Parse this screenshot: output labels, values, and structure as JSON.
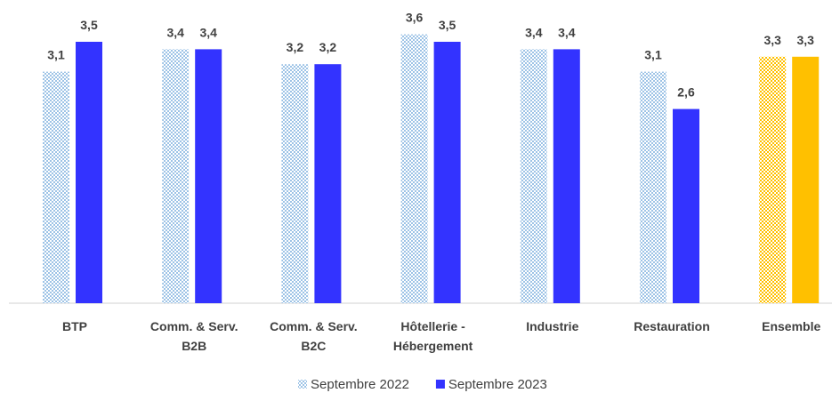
{
  "chart_data": {
    "type": "bar",
    "categories": [
      [
        "BTP"
      ],
      [
        "Comm. & Serv.",
        "B2B"
      ],
      [
        "Comm. & Serv.",
        "B2C"
      ],
      [
        "Hôtellerie -",
        "Hébergement"
      ],
      [
        "Industrie"
      ],
      [
        "Restauration"
      ],
      [
        "Ensemble"
      ]
    ],
    "series": [
      {
        "name": "Septembre 2022",
        "color": "#9dc3e6",
        "pattern": "checker",
        "colors": [
          "#9dc3e6",
          "#9dc3e6",
          "#9dc3e6",
          "#9dc3e6",
          "#9dc3e6",
          "#9dc3e6",
          "#ffc000"
        ],
        "values": [
          3.1,
          3.4,
          3.2,
          3.6,
          3.4,
          3.1,
          3.3
        ],
        "value_labels": [
          "3,1",
          "3,4",
          "3,2",
          "3,6",
          "3,4",
          "3,1",
          "3,3"
        ]
      },
      {
        "name": "Septembre 2023",
        "color": "#3333ff",
        "colors": [
          "#3333ff",
          "#3333ff",
          "#3333ff",
          "#3333ff",
          "#3333ff",
          "#3333ff",
          "#ffc000"
        ],
        "values": [
          3.5,
          3.4,
          3.2,
          3.5,
          3.4,
          2.6,
          3.3
        ],
        "value_labels": [
          "3,5",
          "3,4",
          "3,2",
          "3,5",
          "3,4",
          "2,6",
          "3,3"
        ]
      }
    ],
    "legend": "bottom"
  }
}
